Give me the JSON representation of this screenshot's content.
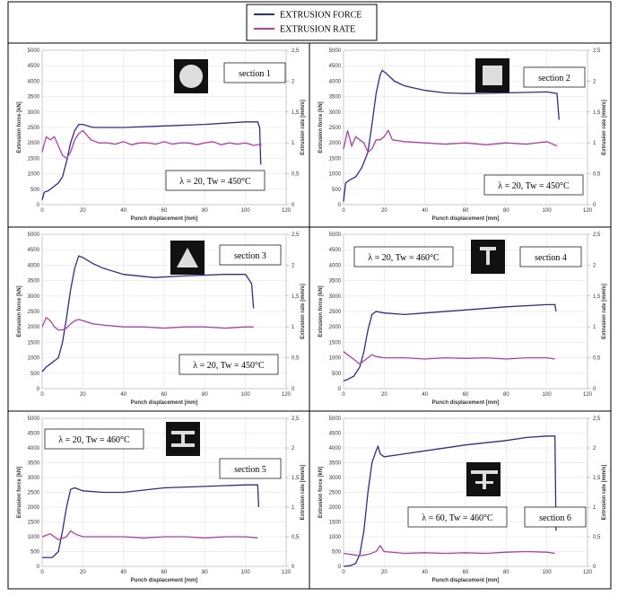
{
  "chart_data": [
    {
      "type": "line",
      "section_label": "section 1",
      "condition": "λ = 20, Tw = 450°C",
      "x_label": "Punch displacement [mm]",
      "y_label": "Extrusion force [kN]",
      "y2_label": "Extrusion rate [mm/s]",
      "xlim": [
        0,
        120
      ],
      "xticks": [
        0,
        20,
        40,
        60,
        80,
        100,
        120
      ],
      "ylim": [
        0,
        5000
      ],
      "yticks": [
        0,
        500,
        1000,
        1500,
        2000,
        2500,
        3000,
        3500,
        4000,
        4500,
        5000
      ],
      "y2lim": [
        0,
        2.5
      ],
      "y2ticks": [
        0,
        {
          "value": 0.5,
          "label": "0,5"
        },
        1,
        {
          "value": 1.5,
          "label": "1,5"
        },
        2,
        {
          "value": 2.5,
          "label": "2,5"
        }
      ],
      "grid": true,
      "series": [
        {
          "name": "EXTRUSION FORCE",
          "color": "#2e2e86",
          "x": [
            0,
            1,
            3,
            5,
            8,
            10,
            12,
            14,
            16,
            18,
            20,
            25,
            40,
            60,
            80,
            100,
            106,
            107,
            107.5
          ],
          "values": [
            150,
            400,
            450,
            550,
            700,
            900,
            1400,
            2000,
            2400,
            2600,
            2600,
            2500,
            2500,
            2550,
            2600,
            2680,
            2680,
            2500,
            1300
          ]
        },
        {
          "name": "EXTRUSION RATE",
          "color": "#b03fa6",
          "axis": "y2",
          "x": [
            0,
            2,
            4,
            6,
            8,
            10,
            12,
            14,
            16,
            18,
            20,
            24,
            28,
            32,
            36,
            40,
            44,
            48,
            52,
            56,
            60,
            64,
            68,
            72,
            76,
            80,
            84,
            88,
            92,
            96,
            100,
            104,
            108
          ],
          "values": [
            0.85,
            1.1,
            1.05,
            1.1,
            0.95,
            0.8,
            0.75,
            0.85,
            1.05,
            1.15,
            1.2,
            1.05,
            1.0,
            1.0,
            0.98,
            1.02,
            0.97,
            1.0,
            1.0,
            0.98,
            1.02,
            0.98,
            1.0,
            1.0,
            0.97,
            1.0,
            1.02,
            0.97,
            1.0,
            0.98,
            1.0,
            0.96,
            0.98
          ]
        }
      ]
    },
    {
      "type": "line",
      "section_label": "section 2",
      "condition": "λ = 20, Tw = 450°C",
      "x_label": "Punch displacement [mm]",
      "y_label": "Extrusion force [kN]",
      "y2_label": "Extrusion rate [mm/s]",
      "xlim": [
        0,
        120
      ],
      "xticks": [
        0,
        20,
        40,
        60,
        80,
        100,
        120
      ],
      "ylim": [
        0,
        5000
      ],
      "yticks": [
        0,
        500,
        1000,
        1500,
        2000,
        2500,
        3000,
        3500,
        4000,
        4500,
        5000
      ],
      "y2lim": [
        0,
        2.5
      ],
      "y2ticks": [
        0,
        {
          "value": 0.5,
          "label": "0,5"
        },
        1,
        {
          "value": 1.5,
          "label": "1,5"
        },
        2,
        {
          "value": 2.5,
          "label": "2,5"
        }
      ],
      "grid": true,
      "series": [
        {
          "name": "EXTRUSION FORCE",
          "color": "#2e2e86",
          "x": [
            0,
            1,
            3,
            6,
            9,
            12,
            14,
            16,
            18,
            19,
            21,
            25,
            30,
            40,
            50,
            60,
            80,
            100,
            105,
            106
          ],
          "values": [
            100,
            700,
            800,
            900,
            1200,
            1700,
            2600,
            3600,
            4200,
            4350,
            4250,
            4000,
            3850,
            3700,
            3620,
            3600,
            3620,
            3650,
            3600,
            2750
          ]
        },
        {
          "name": "EXTRUSION RATE",
          "color": "#b03fa6",
          "axis": "y2",
          "x": [
            0,
            2,
            4,
            6,
            8,
            10,
            12,
            14,
            16,
            18,
            20,
            22,
            24,
            30,
            40,
            50,
            60,
            70,
            80,
            90,
            100,
            105
          ],
          "values": [
            0.9,
            1.2,
            0.95,
            1.1,
            1.05,
            1.0,
            0.85,
            0.9,
            1.05,
            1.05,
            1.1,
            1.2,
            1.05,
            1.02,
            1.0,
            0.98,
            1.0,
            0.97,
            1.0,
            0.98,
            1.02,
            0.95
          ]
        }
      ]
    },
    {
      "type": "line",
      "section_label": "section 3",
      "condition": "λ = 20, Tw = 450°C",
      "x_label": "Punch displacement [mm]",
      "y_label": "Extrusion force [kN]",
      "y2_label": "Extrusion rate [mm/s]",
      "xlim": [
        0,
        120
      ],
      "xticks": [
        0,
        20,
        40,
        60,
        80,
        100,
        120
      ],
      "ylim": [
        0,
        5000
      ],
      "yticks": [
        0,
        500,
        1000,
        1500,
        2000,
        2500,
        3000,
        3500,
        4000,
        4500,
        5000
      ],
      "y2lim": [
        0,
        2.5
      ],
      "y2ticks": [
        0,
        {
          "value": 0.5,
          "label": "0,5"
        },
        1,
        {
          "value": 1.5,
          "label": "1,5"
        },
        2,
        {
          "value": 2.5,
          "label": "2,5"
        }
      ],
      "grid": true,
      "series": [
        {
          "name": "EXTRUSION FORCE",
          "color": "#2e2e86",
          "x": [
            0,
            2,
            5,
            8,
            10,
            12,
            14,
            16,
            18,
            20,
            25,
            30,
            40,
            55,
            70,
            90,
            100,
            103,
            104
          ],
          "values": [
            550,
            700,
            850,
            1000,
            1500,
            2300,
            3200,
            3900,
            4300,
            4250,
            4050,
            3900,
            3700,
            3600,
            3650,
            3700,
            3700,
            3400,
            2600
          ]
        },
        {
          "name": "EXTRUSION RATE",
          "color": "#b03fa6",
          "axis": "y2",
          "x": [
            0,
            2,
            4,
            6,
            8,
            10,
            12,
            14,
            16,
            18,
            20,
            25,
            30,
            40,
            50,
            60,
            70,
            80,
            90,
            100,
            104
          ],
          "values": [
            1.0,
            1.15,
            1.1,
            1.0,
            0.95,
            0.95,
            0.98,
            1.05,
            1.1,
            1.12,
            1.1,
            1.05,
            1.03,
            1.0,
            1.0,
            0.98,
            1.0,
            1.0,
            0.98,
            1.0,
            1.0
          ]
        }
      ]
    },
    {
      "type": "line",
      "section_label": "section 4",
      "condition": "λ = 20, Tw = 460°C",
      "x_label": "Punch displacement [mm]",
      "y_label": "Extrusion force [kN]",
      "y2_label": "Extrusion rate [mm/s]",
      "xlim": [
        0,
        120
      ],
      "xticks": [
        0,
        20,
        40,
        60,
        80,
        100,
        120
      ],
      "ylim": [
        0,
        5000
      ],
      "yticks": [
        0,
        500,
        1000,
        1500,
        2000,
        2500,
        3000,
        3500,
        4000,
        4500,
        5000
      ],
      "y2lim": [
        0,
        2.5
      ],
      "y2ticks": [
        0,
        {
          "value": 0.5,
          "label": "0,5"
        },
        1,
        {
          "value": 1.5,
          "label": "1,5"
        },
        2,
        {
          "value": 2.5,
          "label": "2,5"
        }
      ],
      "grid": true,
      "series": [
        {
          "name": "EXTRUSION FORCE",
          "color": "#2e2e86",
          "x": [
            0,
            2,
            5,
            8,
            10,
            12,
            14,
            16,
            20,
            30,
            40,
            60,
            80,
            100,
            104,
            104.5
          ],
          "values": [
            250,
            300,
            400,
            700,
            1200,
            1900,
            2400,
            2500,
            2450,
            2400,
            2450,
            2550,
            2650,
            2720,
            2720,
            2500
          ]
        },
        {
          "name": "EXTRUSION RATE",
          "color": "#b03fa6",
          "axis": "y2",
          "x": [
            0,
            2,
            4,
            6,
            8,
            10,
            12,
            14,
            16,
            20,
            30,
            40,
            50,
            60,
            70,
            80,
            90,
            100,
            104
          ],
          "values": [
            0.6,
            0.55,
            0.5,
            0.45,
            0.4,
            0.45,
            0.5,
            0.55,
            0.52,
            0.5,
            0.5,
            0.48,
            0.5,
            0.49,
            0.5,
            0.48,
            0.5,
            0.5,
            0.48
          ]
        }
      ]
    },
    {
      "type": "line",
      "section_label": "section 5",
      "condition": "λ = 20, Tw = 460°C",
      "x_label": "Punch displacement [mm]",
      "y_label": "Extrusion force [kN]",
      "y2_label": "Extrusion rate [mm/s]",
      "xlim": [
        0,
        120
      ],
      "xticks": [
        0,
        20,
        40,
        60,
        80,
        100,
        120
      ],
      "ylim": [
        0,
        5000
      ],
      "yticks": [
        0,
        500,
        1000,
        1500,
        2000,
        2500,
        3000,
        3500,
        4000,
        4500,
        5000
      ],
      "y2lim": [
        0,
        2.5
      ],
      "y2ticks": [
        0,
        {
          "value": 0.5,
          "label": "0,5"
        },
        1,
        {
          "value": 1.5,
          "label": "1,5"
        },
        2,
        {
          "value": 2.5,
          "label": "2,5"
        }
      ],
      "grid": true,
      "series": [
        {
          "name": "EXTRUSION FORCE",
          "color": "#2e2e86",
          "x": [
            0,
            5,
            8,
            10,
            12,
            14,
            16,
            20,
            30,
            40,
            60,
            80,
            100,
            106,
            106.5
          ],
          "values": [
            300,
            300,
            500,
            1200,
            2000,
            2600,
            2650,
            2550,
            2500,
            2500,
            2650,
            2700,
            2750,
            2750,
            2000
          ]
        },
        {
          "name": "EXTRUSION RATE",
          "color": "#b03fa6",
          "axis": "y2",
          "x": [
            0,
            4,
            8,
            12,
            14,
            16,
            20,
            30,
            40,
            50,
            60,
            70,
            80,
            90,
            100,
            106
          ],
          "values": [
            0.5,
            0.55,
            0.45,
            0.5,
            0.6,
            0.55,
            0.5,
            0.5,
            0.5,
            0.48,
            0.5,
            0.5,
            0.48,
            0.5,
            0.5,
            0.48
          ]
        }
      ]
    },
    {
      "type": "line",
      "section_label": "section 6",
      "condition": "λ = 60, Tw = 460°C",
      "x_label": "Punch  displacement [mm]",
      "y_label": "Extrusion force [kN]",
      "y2_label": "Extrusion rate [mm/s]",
      "xlim": [
        0,
        120
      ],
      "xticks": [
        0,
        20,
        40,
        60,
        80,
        100,
        120
      ],
      "ylim": [
        0,
        5000
      ],
      "yticks": [
        0,
        500,
        1000,
        1500,
        2000,
        2500,
        3000,
        3500,
        4000,
        4500,
        5000
      ],
      "y2lim": [
        0,
        2.5
      ],
      "y2ticks": [
        0,
        {
          "value": 0.5,
          "label": "0,5"
        },
        1,
        {
          "value": 1.5,
          "label": "1,5"
        },
        2,
        {
          "value": 2.5,
          "label": "2,5"
        }
      ],
      "grid": true,
      "series": [
        {
          "name": "EXTRUSION FORCE",
          "color": "#2e2e86",
          "x": [
            0,
            3,
            6,
            8,
            10,
            12,
            14,
            16,
            17,
            18,
            20,
            30,
            40,
            60,
            80,
            90,
            100,
            104,
            104.5
          ],
          "values": [
            0,
            20,
            100,
            400,
            1200,
            2500,
            3500,
            3900,
            4050,
            3800,
            3700,
            3800,
            3900,
            4100,
            4250,
            4350,
            4400,
            4400,
            1200
          ]
        },
        {
          "name": "EXTRUSION RATE",
          "color": "#b03fa6",
          "axis": "y2",
          "x": [
            0,
            4,
            8,
            12,
            16,
            18,
            20,
            30,
            40,
            50,
            60,
            70,
            80,
            90,
            100,
            104
          ],
          "values": [
            0.22,
            0.2,
            0.18,
            0.2,
            0.25,
            0.35,
            0.25,
            0.22,
            0.23,
            0.22,
            0.23,
            0.22,
            0.24,
            0.25,
            0.24,
            0.22
          ]
        }
      ]
    }
  ]
}
